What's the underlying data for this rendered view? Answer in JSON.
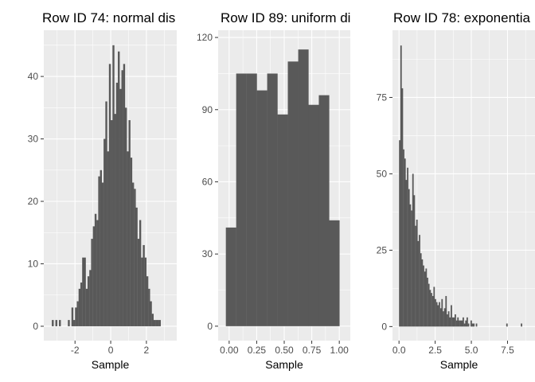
{
  "colors": {
    "panel_bg": "#ebebeb",
    "grid_major": "#ffffff",
    "bar_fill": "#595959",
    "tick_label": "#4d4d4d",
    "text": "#000000"
  },
  "chart_data": [
    {
      "type": "bar",
      "title": "Row ID 74: normal dis",
      "xlabel": "Sample",
      "ylabel": "",
      "xlim": [
        -3.75,
        3.7
      ],
      "ylim": [
        -2.3,
        47.4
      ],
      "xticks": [
        -2,
        0,
        2
      ],
      "xtick_labels": [
        "-2",
        "0",
        "2"
      ],
      "yticks": [
        0,
        10,
        20,
        30,
        40
      ],
      "ytick_labels": [
        "0",
        "10",
        "20",
        "30",
        "40"
      ],
      "grid": true,
      "bin_width": 0.1,
      "bin_start": -3.3,
      "values": [
        1,
        0,
        1,
        0,
        1,
        0,
        0,
        0,
        0,
        1,
        0,
        3,
        1,
        3,
        4,
        6,
        7,
        11,
        11,
        6,
        8,
        9,
        14,
        16,
        18,
        17,
        24,
        25,
        23,
        30,
        36,
        28,
        42,
        33,
        45,
        34,
        39,
        44,
        38,
        41,
        42,
        35,
        28,
        33,
        27,
        23,
        22,
        19,
        14,
        17,
        11,
        13,
        11,
        8,
        6,
        4,
        2,
        1,
        1,
        1,
        1
      ],
      "notes": ""
    },
    {
      "type": "bar",
      "title": "Row ID 89: uniform di",
      "xlabel": "Sample",
      "ylabel": "",
      "xlim": [
        -0.1,
        1.1
      ],
      "ylim": [
        -6,
        123
      ],
      "xticks": [
        0,
        0.25,
        0.5,
        0.75,
        1
      ],
      "xtick_labels": [
        "0.00",
        "0.25",
        "0.50",
        "0.75",
        "1.00"
      ],
      "yticks": [
        0,
        30,
        60,
        90,
        120
      ],
      "ytick_labels": [
        "0",
        "30",
        "60",
        "90",
        "120"
      ],
      "grid": true,
      "bin_width": 0.0938,
      "bin_start": -0.03,
      "values": [
        41,
        105,
        105,
        98,
        105,
        88,
        110,
        115,
        92,
        96,
        44
      ]
    },
    {
      "type": "bar",
      "title": "Row ID 78: exponentia",
      "xlabel": "Sample",
      "ylabel": "",
      "xlim": [
        -0.45,
        9.4
      ],
      "ylim": [
        -4.6,
        97
      ],
      "xticks": [
        0,
        2.5,
        5,
        7.5
      ],
      "xtick_labels": [
        "0.0",
        "2.5",
        "5.0",
        "7.5"
      ],
      "yticks": [
        0,
        25,
        50,
        75
      ],
      "ytick_labels": [
        "0",
        "25",
        "50",
        "75"
      ],
      "grid": true,
      "bin_width": 0.0915,
      "bin_start": 0.0,
      "values": [
        61,
        92,
        78,
        58,
        55,
        48,
        52,
        45,
        40,
        38,
        50,
        43,
        33,
        35,
        28,
        30,
        24,
        22,
        20,
        18,
        19,
        16,
        14,
        12,
        11,
        10,
        13,
        9,
        8,
        7,
        8,
        6,
        9,
        5,
        6,
        10,
        4,
        5,
        3,
        7,
        3,
        3,
        4,
        2,
        3,
        2,
        2,
        2,
        3,
        1,
        2,
        3,
        1,
        0,
        2,
        1,
        1,
        0,
        1,
        0,
        0,
        0,
        0,
        0,
        0,
        0,
        0,
        0,
        0,
        0,
        0,
        0,
        0,
        0,
        0,
        0,
        0,
        0,
        0,
        0,
        0,
        1,
        0,
        0,
        0,
        0,
        0,
        0,
        0,
        0,
        0,
        0,
        1,
        0,
        0,
        0,
        0,
        0,
        0,
        0,
        0,
        0,
        0,
        0,
        1,
        0,
        0,
        0,
        0,
        0,
        0,
        0,
        0,
        0,
        0,
        0,
        0,
        0,
        0,
        0,
        0,
        0,
        0,
        0,
        0,
        0,
        0,
        0,
        0,
        0,
        0,
        0,
        0,
        0,
        0,
        0,
        0,
        0,
        0,
        0,
        0,
        0,
        0,
        0,
        0,
        0,
        0,
        0,
        0,
        0,
        0,
        0,
        0,
        0,
        0,
        0,
        0,
        0,
        0,
        0,
        0,
        0,
        1
      ]
    }
  ]
}
